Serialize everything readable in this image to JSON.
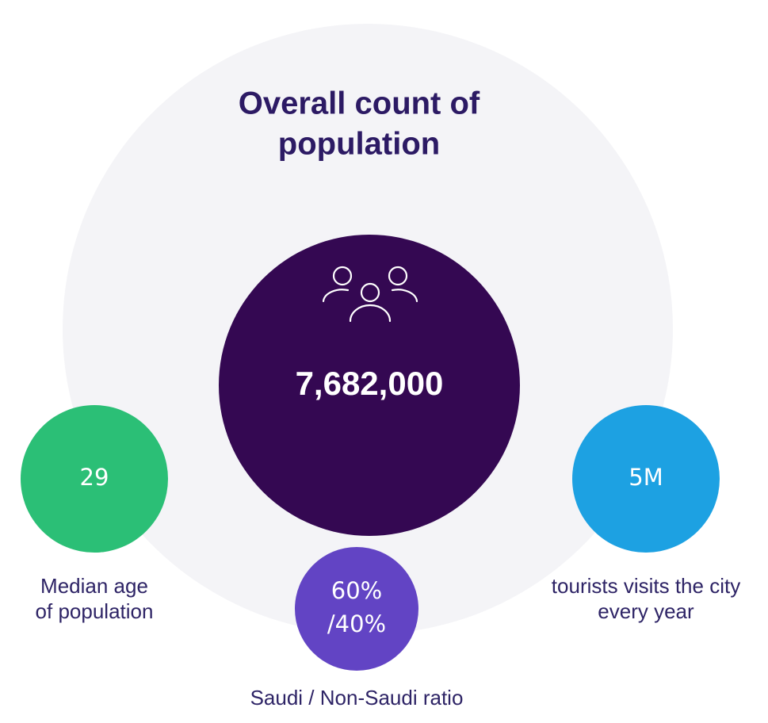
{
  "title": [
    "Overall count of",
    "population"
  ],
  "main": {
    "value": "7,682,000"
  },
  "stats": [
    {
      "value": [
        "29"
      ],
      "label": [
        "Median age",
        "of population"
      ]
    },
    {
      "value": [
        "60%",
        "/40%"
      ],
      "label": [
        "Saudi / Non-Saudi ratio"
      ]
    },
    {
      "value": [
        "5M"
      ],
      "label": [
        "tourists visits the city",
        "every year"
      ]
    }
  ]
}
